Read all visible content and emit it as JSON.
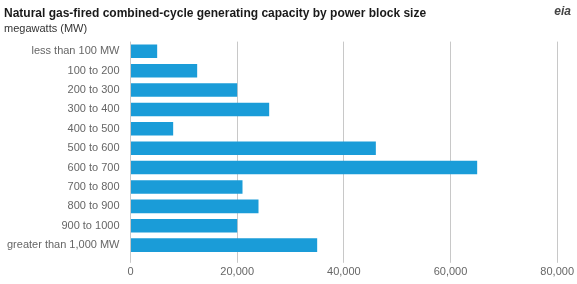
{
  "chart_data": {
    "type": "bar",
    "orientation": "horizontal",
    "title": "Natural gas-fired combined-cycle generating capacity by power block size",
    "subtitle": "megawatts (MW)",
    "annotations": [
      "eia"
    ],
    "categories": [
      "less than 100 MW",
      "100 to 200",
      "200 to 300",
      "300 to 400",
      "400 to 500",
      "500 to 600",
      "600 to 700",
      "700 to 800",
      "800 to 900",
      "900 to 1000",
      "greater than 1,000 MW"
    ],
    "values": [
      5000,
      12500,
      20000,
      26000,
      8000,
      46000,
      65000,
      21000,
      24000,
      20000,
      35000
    ],
    "color": "#1a9cd8",
    "xlim": [
      0,
      80000
    ],
    "xticks": [
      0,
      {
        "value": 20000,
        "label": "20,000"
      },
      {
        "value": 40000,
        "label": "40,000"
      },
      {
        "value": 60000,
        "label": "60,000"
      },
      {
        "value": 80000,
        "label": "80,000"
      }
    ],
    "grid": true
  }
}
